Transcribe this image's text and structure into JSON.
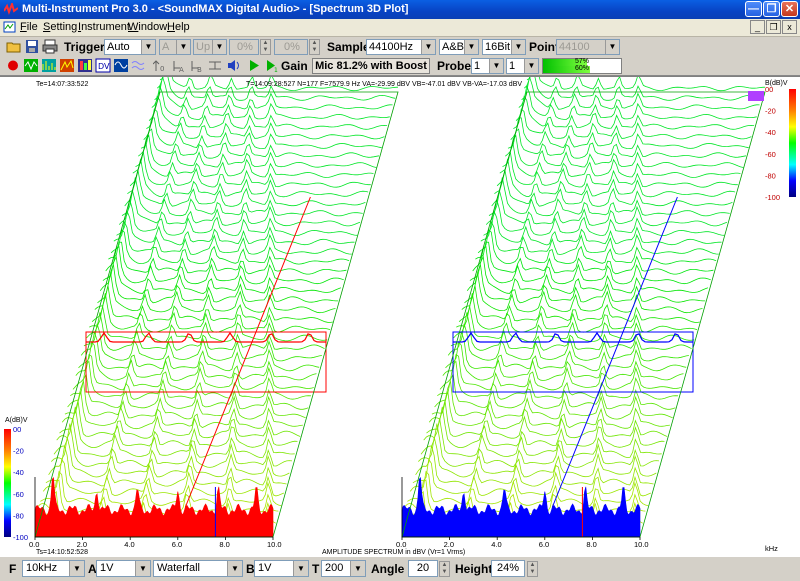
{
  "window": {
    "title": "Multi-Instrument Pro 3.0 - <SoundMAX Digital Audio> - [Spectrum 3D Plot]"
  },
  "menu": [
    {
      "label": "File",
      "key": "F",
      "rest": "ile"
    },
    {
      "label": "Setting",
      "key": "S",
      "rest": "etting"
    },
    {
      "label": "Instrument",
      "key": "I",
      "rest": "nstrument"
    },
    {
      "label": "Window",
      "key": "W",
      "rest": "indow"
    },
    {
      "label": "Help",
      "key": "H",
      "rest": "elp"
    }
  ],
  "toolbar1": {
    "trigger_label": "Trigger",
    "trigger_mode": "Auto",
    "trigger_channel": "A",
    "trigger_edge": "Up",
    "level_a": "0%",
    "level_b": "0%",
    "sample_label": "Sample",
    "sample_rate": "44100Hz",
    "channels": "A&B",
    "bits": "16Bit",
    "point_label": "Point",
    "point_value": "44100"
  },
  "toolbar2": {
    "gain_label": "Gain",
    "mic_status": "Mic 81.2% with Boost",
    "probe_label": "Probe",
    "probe_a": "1",
    "probe_b": "1",
    "meter_a": "57%",
    "meter_b": "60%",
    "meter_a_fraction": 0.57,
    "meter_b_fraction": 0.6
  },
  "plot": {
    "te": "Te=14:07:33:522",
    "status": "T=14:09:28:527  N=177   F=7579.9 Hz   VA=-29.99 dBV  VB=-47.01 dBV  VB-VA=-17.03 dBV",
    "ts": "Ts=14:10:52:528",
    "bottom_caption": "AMPLITUDE SPECTRUM in dBV (Vr=1 Vrms)",
    "left_axis_label": "A(dB)V",
    "right_axis_label": "B(dB)V",
    "db_ticks": [
      "00",
      "-20",
      "-40",
      "-60",
      "-80",
      "-100"
    ],
    "freq_ticks": [
      "0.0",
      "2.0",
      "4.0",
      "6.0",
      "8.0",
      "10.0"
    ],
    "freq_unit": "kHz",
    "colors": {
      "channel_a": "#ff0000",
      "channel_b": "#0000ff",
      "frame": "#00a000"
    }
  },
  "bottombar": {
    "f_label": "F",
    "f_range": "10kHz",
    "a_label": "A",
    "a_range": "1V",
    "mode": "Waterfall",
    "b_label": "B",
    "b_range": "1V",
    "t_label": "T",
    "t_value": "200",
    "angle_label": "Angle",
    "angle_value": "20",
    "height_label": "Height",
    "height_value": "24%"
  }
}
